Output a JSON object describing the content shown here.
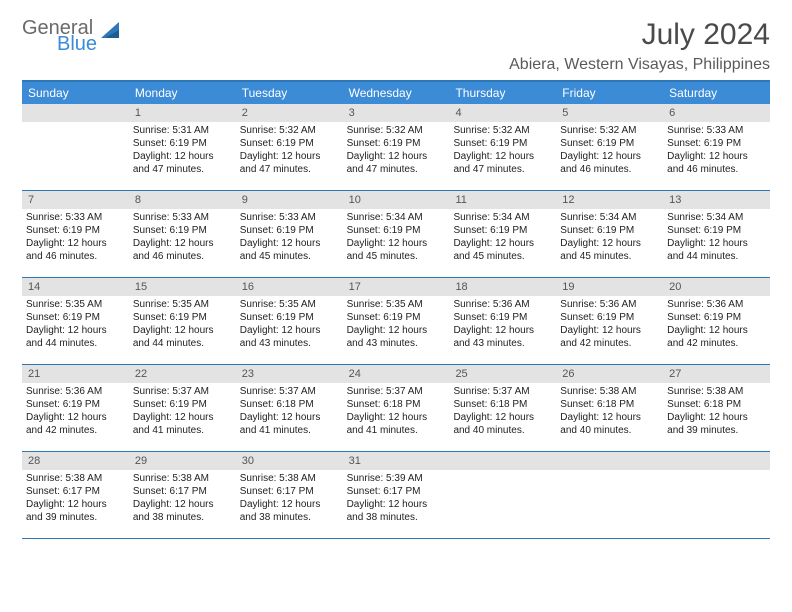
{
  "logo": {
    "text1": "General",
    "text2": "Blue",
    "sail_color": "#2f78b7"
  },
  "title": "July 2024",
  "location": "Abiera, Western Visayas, Philippines",
  "colors": {
    "header_bg": "#3b8bd6",
    "header_text": "#ffffff",
    "rule": "#2f78b7",
    "daynum_bg": "#e3e3e3",
    "daynum_text": "#555555",
    "body_text": "#222222"
  },
  "day_headers": [
    "Sunday",
    "Monday",
    "Tuesday",
    "Wednesday",
    "Thursday",
    "Friday",
    "Saturday"
  ],
  "weeks": [
    [
      {
        "n": "",
        "lines": []
      },
      {
        "n": "1",
        "lines": [
          "Sunrise: 5:31 AM",
          "Sunset: 6:19 PM",
          "Daylight: 12 hours and 47 minutes."
        ]
      },
      {
        "n": "2",
        "lines": [
          "Sunrise: 5:32 AM",
          "Sunset: 6:19 PM",
          "Daylight: 12 hours and 47 minutes."
        ]
      },
      {
        "n": "3",
        "lines": [
          "Sunrise: 5:32 AM",
          "Sunset: 6:19 PM",
          "Daylight: 12 hours and 47 minutes."
        ]
      },
      {
        "n": "4",
        "lines": [
          "Sunrise: 5:32 AM",
          "Sunset: 6:19 PM",
          "Daylight: 12 hours and 47 minutes."
        ]
      },
      {
        "n": "5",
        "lines": [
          "Sunrise: 5:32 AM",
          "Sunset: 6:19 PM",
          "Daylight: 12 hours and 46 minutes."
        ]
      },
      {
        "n": "6",
        "lines": [
          "Sunrise: 5:33 AM",
          "Sunset: 6:19 PM",
          "Daylight: 12 hours and 46 minutes."
        ]
      }
    ],
    [
      {
        "n": "7",
        "lines": [
          "Sunrise: 5:33 AM",
          "Sunset: 6:19 PM",
          "Daylight: 12 hours and 46 minutes."
        ]
      },
      {
        "n": "8",
        "lines": [
          "Sunrise: 5:33 AM",
          "Sunset: 6:19 PM",
          "Daylight: 12 hours and 46 minutes."
        ]
      },
      {
        "n": "9",
        "lines": [
          "Sunrise: 5:33 AM",
          "Sunset: 6:19 PM",
          "Daylight: 12 hours and 45 minutes."
        ]
      },
      {
        "n": "10",
        "lines": [
          "Sunrise: 5:34 AM",
          "Sunset: 6:19 PM",
          "Daylight: 12 hours and 45 minutes."
        ]
      },
      {
        "n": "11",
        "lines": [
          "Sunrise: 5:34 AM",
          "Sunset: 6:19 PM",
          "Daylight: 12 hours and 45 minutes."
        ]
      },
      {
        "n": "12",
        "lines": [
          "Sunrise: 5:34 AM",
          "Sunset: 6:19 PM",
          "Daylight: 12 hours and 45 minutes."
        ]
      },
      {
        "n": "13",
        "lines": [
          "Sunrise: 5:34 AM",
          "Sunset: 6:19 PM",
          "Daylight: 12 hours and 44 minutes."
        ]
      }
    ],
    [
      {
        "n": "14",
        "lines": [
          "Sunrise: 5:35 AM",
          "Sunset: 6:19 PM",
          "Daylight: 12 hours and 44 minutes."
        ]
      },
      {
        "n": "15",
        "lines": [
          "Sunrise: 5:35 AM",
          "Sunset: 6:19 PM",
          "Daylight: 12 hours and 44 minutes."
        ]
      },
      {
        "n": "16",
        "lines": [
          "Sunrise: 5:35 AM",
          "Sunset: 6:19 PM",
          "Daylight: 12 hours and 43 minutes."
        ]
      },
      {
        "n": "17",
        "lines": [
          "Sunrise: 5:35 AM",
          "Sunset: 6:19 PM",
          "Daylight: 12 hours and 43 minutes."
        ]
      },
      {
        "n": "18",
        "lines": [
          "Sunrise: 5:36 AM",
          "Sunset: 6:19 PM",
          "Daylight: 12 hours and 43 minutes."
        ]
      },
      {
        "n": "19",
        "lines": [
          "Sunrise: 5:36 AM",
          "Sunset: 6:19 PM",
          "Daylight: 12 hours and 42 minutes."
        ]
      },
      {
        "n": "20",
        "lines": [
          "Sunrise: 5:36 AM",
          "Sunset: 6:19 PM",
          "Daylight: 12 hours and 42 minutes."
        ]
      }
    ],
    [
      {
        "n": "21",
        "lines": [
          "Sunrise: 5:36 AM",
          "Sunset: 6:19 PM",
          "Daylight: 12 hours and 42 minutes."
        ]
      },
      {
        "n": "22",
        "lines": [
          "Sunrise: 5:37 AM",
          "Sunset: 6:19 PM",
          "Daylight: 12 hours and 41 minutes."
        ]
      },
      {
        "n": "23",
        "lines": [
          "Sunrise: 5:37 AM",
          "Sunset: 6:18 PM",
          "Daylight: 12 hours and 41 minutes."
        ]
      },
      {
        "n": "24",
        "lines": [
          "Sunrise: 5:37 AM",
          "Sunset: 6:18 PM",
          "Daylight: 12 hours and 41 minutes."
        ]
      },
      {
        "n": "25",
        "lines": [
          "Sunrise: 5:37 AM",
          "Sunset: 6:18 PM",
          "Daylight: 12 hours and 40 minutes."
        ]
      },
      {
        "n": "26",
        "lines": [
          "Sunrise: 5:38 AM",
          "Sunset: 6:18 PM",
          "Daylight: 12 hours and 40 minutes."
        ]
      },
      {
        "n": "27",
        "lines": [
          "Sunrise: 5:38 AM",
          "Sunset: 6:18 PM",
          "Daylight: 12 hours and 39 minutes."
        ]
      }
    ],
    [
      {
        "n": "28",
        "lines": [
          "Sunrise: 5:38 AM",
          "Sunset: 6:17 PM",
          "Daylight: 12 hours and 39 minutes."
        ]
      },
      {
        "n": "29",
        "lines": [
          "Sunrise: 5:38 AM",
          "Sunset: 6:17 PM",
          "Daylight: 12 hours and 38 minutes."
        ]
      },
      {
        "n": "30",
        "lines": [
          "Sunrise: 5:38 AM",
          "Sunset: 6:17 PM",
          "Daylight: 12 hours and 38 minutes."
        ]
      },
      {
        "n": "31",
        "lines": [
          "Sunrise: 5:39 AM",
          "Sunset: 6:17 PM",
          "Daylight: 12 hours and 38 minutes."
        ]
      },
      {
        "n": "",
        "lines": []
      },
      {
        "n": "",
        "lines": []
      },
      {
        "n": "",
        "lines": []
      }
    ]
  ]
}
